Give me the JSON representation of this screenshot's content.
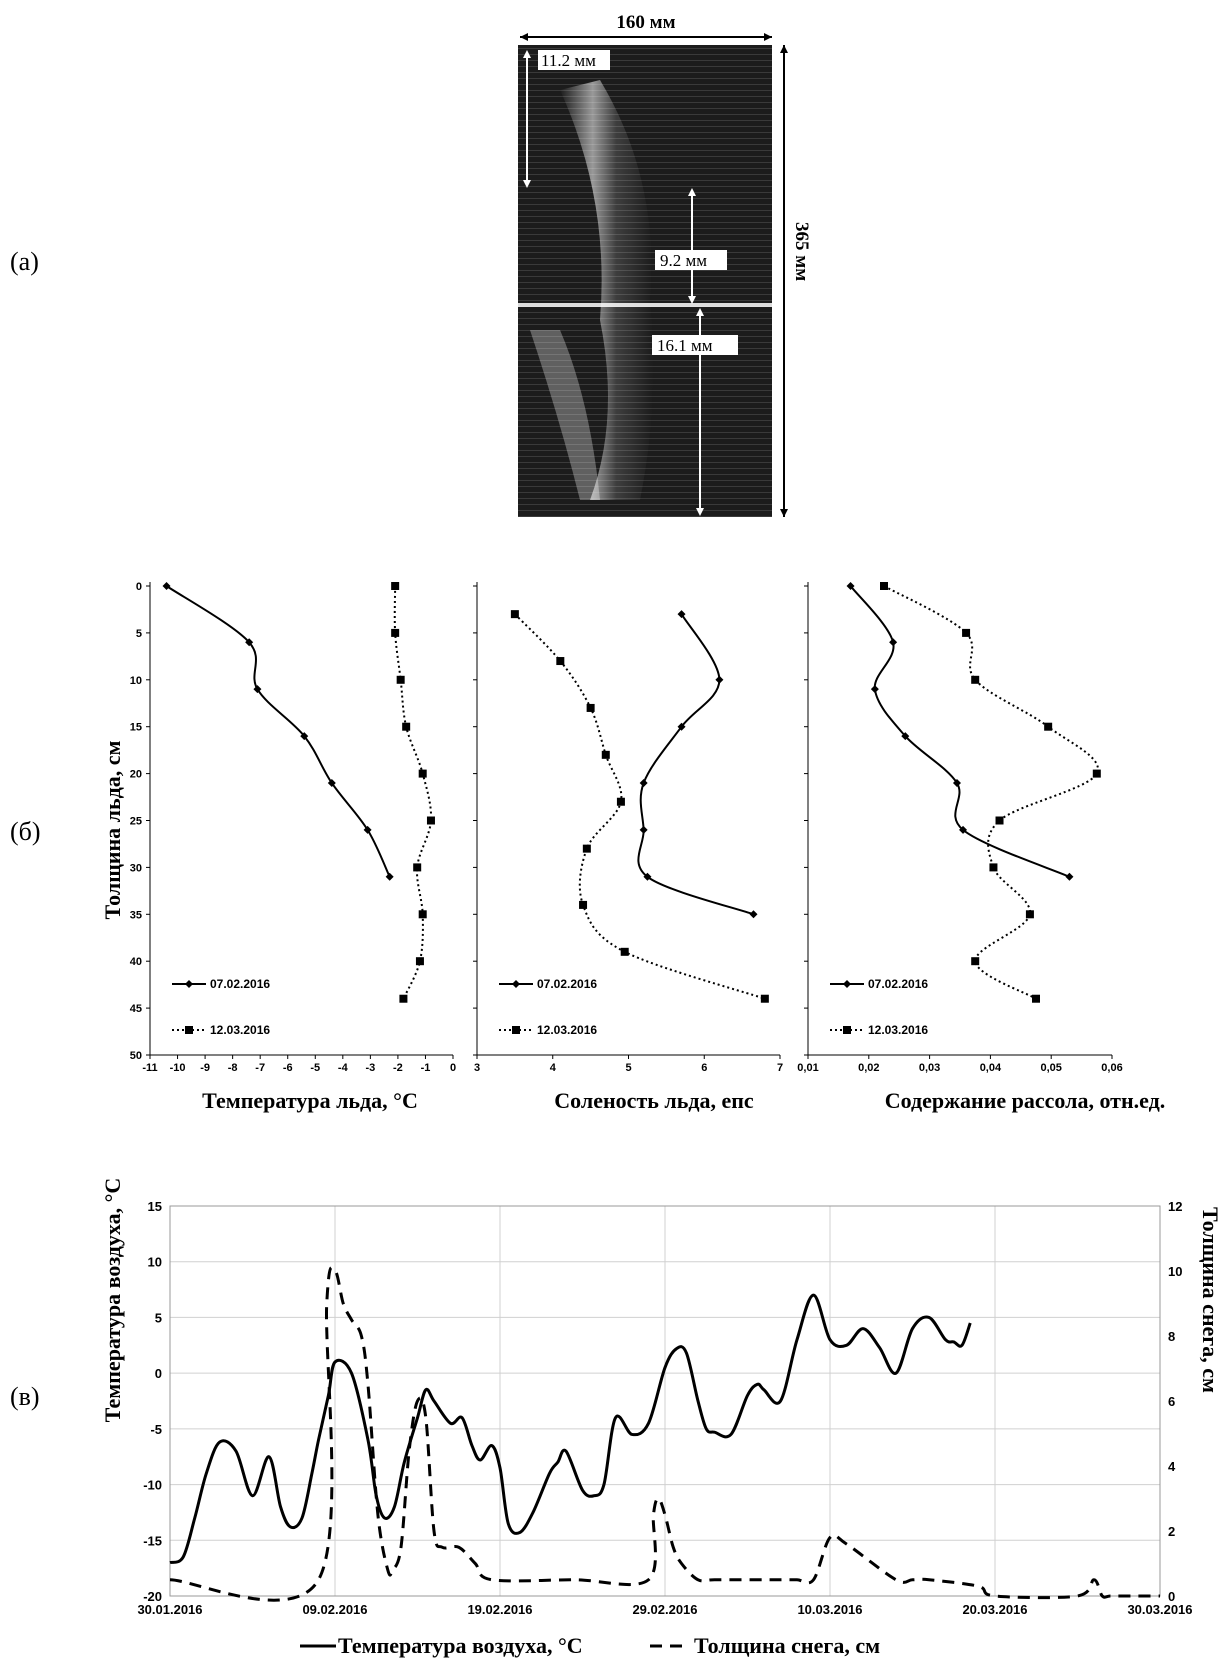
{
  "panel_labels": {
    "a": "(а)",
    "b": "(б)",
    "c": "(в)"
  },
  "photo": {
    "width_label": "160 мм",
    "height_label": "365 мм",
    "layer_labels": [
      "11.2 мм",
      "9.2 мм",
      "16.1 мм"
    ]
  },
  "colors": {
    "line": "#000000",
    "grid": "#d0d0d0",
    "photo_bg": "#1a1a1a"
  },
  "chart_data": [
    {
      "type": "line",
      "id": "ice-temperature",
      "xlabel": "Температура льда, °C",
      "ylabel": "Толщина льда, см",
      "xlim": [
        -11,
        0
      ],
      "ylim": [
        0,
        50
      ],
      "y_inverted": true,
      "xticks": [
        "-11",
        "-10",
        "-9",
        "-8",
        "-7",
        "-6",
        "-5",
        "-4",
        "-3",
        "-2",
        "-1",
        "0"
      ],
      "yticks": [
        "0",
        "5",
        "10",
        "15",
        "20",
        "25",
        "30",
        "35",
        "40",
        "45",
        "50"
      ],
      "legend_position": "bottom-left",
      "series": [
        {
          "name": "07.02.2016",
          "style": "solid",
          "marker": "diamond",
          "points": [
            [
              -10.4,
              0
            ],
            [
              -7.4,
              6
            ],
            [
              -7.1,
              11
            ],
            [
              -5.4,
              16
            ],
            [
              -4.4,
              21
            ],
            [
              -3.1,
              26
            ],
            [
              -2.3,
              31
            ]
          ]
        },
        {
          "name": "12.03.2016",
          "style": "dotted",
          "marker": "square",
          "points": [
            [
              -2.1,
              0
            ],
            [
              -2.1,
              5
            ],
            [
              -1.9,
              10
            ],
            [
              -1.7,
              15
            ],
            [
              -1.1,
              20
            ],
            [
              -0.8,
              25
            ],
            [
              -1.3,
              30
            ],
            [
              -1.1,
              35
            ],
            [
              -1.2,
              40
            ],
            [
              -1.8,
              44
            ]
          ]
        }
      ]
    },
    {
      "type": "line",
      "id": "ice-salinity",
      "xlabel": "Соленость льда, епс",
      "ylabel": "",
      "xlim": [
        3,
        7
      ],
      "ylim": [
        0,
        50
      ],
      "y_inverted": true,
      "xticks": [
        "3",
        "4",
        "5",
        "6",
        "7"
      ],
      "legend_position": "bottom-left",
      "series": [
        {
          "name": "07.02.2016",
          "style": "solid",
          "marker": "diamond",
          "points": [
            [
              5.7,
              3
            ],
            [
              6.2,
              10
            ],
            [
              5.7,
              15
            ],
            [
              5.2,
              21
            ],
            [
              5.2,
              26
            ],
            [
              5.25,
              31
            ],
            [
              6.65,
              35
            ]
          ]
        },
        {
          "name": "12.03.2016",
          "style": "dotted",
          "marker": "square",
          "points": [
            [
              3.5,
              3
            ],
            [
              4.1,
              8
            ],
            [
              4.5,
              13
            ],
            [
              4.7,
              18
            ],
            [
              4.9,
              23
            ],
            [
              4.45,
              28
            ],
            [
              4.4,
              34
            ],
            [
              4.95,
              39
            ],
            [
              6.8,
              44
            ]
          ]
        }
      ]
    },
    {
      "type": "line",
      "id": "brine-content",
      "xlabel": "Содержание рассола, отн.ед.",
      "ylabel": "",
      "xlim": [
        0.01,
        0.06
      ],
      "ylim": [
        0,
        50
      ],
      "y_inverted": true,
      "xticks": [
        "0,01",
        "0,02",
        "0,03",
        "0,04",
        "0,05",
        "0,06"
      ],
      "legend_position": "bottom-left",
      "series": [
        {
          "name": "07.02.2016",
          "style": "solid",
          "marker": "diamond",
          "points": [
            [
              0.017,
              0
            ],
            [
              0.024,
              6
            ],
            [
              0.021,
              11
            ],
            [
              0.026,
              16
            ],
            [
              0.0345,
              21
            ],
            [
              0.0355,
              26
            ],
            [
              0.053,
              31
            ]
          ]
        },
        {
          "name": "12.03.2016",
          "style": "dotted",
          "marker": "square",
          "points": [
            [
              0.0225,
              0
            ],
            [
              0.036,
              5
            ],
            [
              0.0375,
              10
            ],
            [
              0.0495,
              15
            ],
            [
              0.0575,
              20
            ],
            [
              0.0415,
              25
            ],
            [
              0.0405,
              30
            ],
            [
              0.0465,
              35
            ],
            [
              0.0375,
              40
            ],
            [
              0.0475,
              44
            ]
          ]
        }
      ]
    },
    {
      "type": "line",
      "id": "air-temp-snow",
      "ylabel": "Температура воздуха, °C",
      "y2label": "Толщина снега, см",
      "ylim": [
        -20,
        15
      ],
      "y2lim": [
        0,
        12
      ],
      "xlim_days": [
        0,
        60
      ],
      "xticks": [
        "30.01.2016",
        "09.02.2016",
        "19.02.2016",
        "29.02.2016",
        "10.03.2016",
        "20.03.2016",
        "30.03.2016"
      ],
      "yticks": [
        "15",
        "10",
        "5",
        "0",
        "-5",
        "-10",
        "-15",
        "-20"
      ],
      "y2ticks": [
        "12",
        "10",
        "8",
        "6",
        "4",
        "2",
        "0"
      ],
      "grid": true,
      "series": [
        {
          "name": "Температура воздуха, °C",
          "axis": "left",
          "style": "solid",
          "x": [
            0,
            0.8,
            1.5,
            2.2,
            3,
            4,
            5,
            6,
            6.7,
            7.3,
            8,
            8.6,
            9,
            9.6,
            10,
            11,
            12,
            12.5,
            13,
            13.6,
            14.2,
            15,
            15.5,
            16,
            17,
            17.7,
            18.3,
            18.8,
            19.5,
            20,
            20.5,
            21.2,
            22,
            23,
            23.5,
            24,
            25,
            25.7,
            26.3,
            27,
            28,
            29,
            30,
            30.7,
            31.3,
            32,
            32.5,
            33,
            34,
            35,
            35.6,
            36,
            37,
            38,
            39,
            40,
            41,
            42,
            43,
            44,
            45,
            46,
            47,
            47.5,
            48,
            48.5,
            49,
            49.5,
            50,
            50.5,
            51,
            52,
            53,
            53.6,
            54,
            55,
            55.6,
            56,
            56.5,
            57,
            58,
            59,
            60
          ],
          "y": [
            -17,
            -16.5,
            -13,
            -9,
            -6.2,
            -7,
            -11,
            -7.5,
            -12,
            -13.8,
            -13,
            -9,
            -6,
            -2,
            1,
            0,
            -6,
            -11,
            -13,
            -12,
            -8,
            -4,
            -1.5,
            -2.5,
            -4.5,
            -4,
            -6.5,
            -7.8,
            -6.5,
            -8.5,
            -13.5,
            -14.3,
            -12.5,
            -9,
            -8,
            -7,
            -10.5,
            -11,
            -10,
            -4,
            -5.5,
            -4.5,
            0.5,
            2.2,
            1.8,
            -2.5,
            -5,
            -5.3,
            -5.5,
            -2,
            -1,
            -1.5,
            -2.5,
            3,
            7,
            3,
            2.5,
            4,
            2.3,
            0,
            4,
            5,
            3,
            2.8,
            2.5,
            4.5,
            null,
            null,
            null,
            null,
            null,
            null,
            null,
            null,
            null,
            null,
            null,
            null,
            null,
            null,
            null,
            null,
            null
          ]
        },
        {
          "name": "Толщина снега, см",
          "axis": "right",
          "style": "dashed",
          "x": [
            0,
            9,
            9.5,
            10,
            10.5,
            11,
            11.6,
            12,
            12.6,
            13.2,
            13.5,
            14,
            14.5,
            15,
            15.5,
            16,
            16.5,
            17.5,
            18.5,
            19.5,
            24.5,
            29,
            29.3,
            29.6,
            30,
            30.5,
            31,
            32,
            33,
            36,
            37,
            38,
            39,
            40,
            41,
            44,
            45,
            46,
            49,
            50,
            55,
            56,
            56.5,
            57,
            58,
            60
          ],
          "y": [
            0.5,
            0.5,
            9,
            10,
            9,
            8.5,
            8,
            6.5,
            2.5,
            0.8,
            0.8,
            1.5,
            4.5,
            6,
            5.5,
            2,
            1.5,
            1.5,
            1,
            0.5,
            0.5,
            0.5,
            2.5,
            3,
            2.5,
            1.5,
            1,
            0.5,
            0.5,
            0.5,
            0.5,
            0.5,
            0.5,
            1.8,
            1.6,
            0.5,
            0.5,
            0.5,
            0.3,
            0,
            0,
            0.5,
            0,
            0,
            0,
            0
          ]
        }
      ]
    }
  ]
}
